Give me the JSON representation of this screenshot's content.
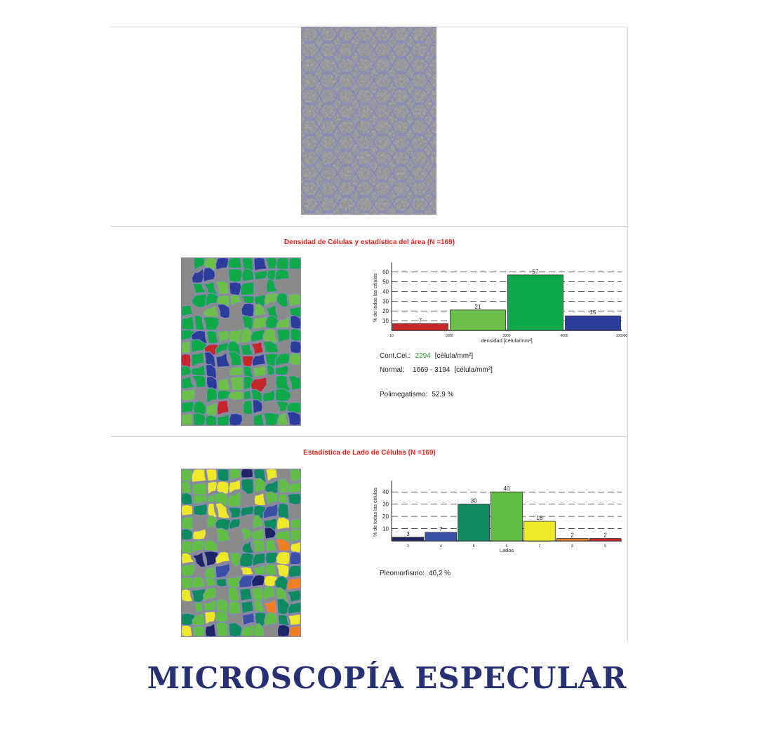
{
  "section1": {
    "title": "Densidad de Células y estadística del área (N =169)",
    "stats": {
      "cont_label": "Cont.Cel.:",
      "cont_value": "2294",
      "cont_unit": "[célula/mm²]",
      "normal_label": "Normal:",
      "normal_value": "1669 - 3194",
      "normal_unit": "[célula/mm²]",
      "poli_label": "Polimegatismo:",
      "poli_value": "52,9 %"
    }
  },
  "section2": {
    "title": "Estadística de Lado de Células (N =169)",
    "stats": {
      "pleo_label": "Pleomorfismo:",
      "pleo_value": "40,2 %"
    }
  },
  "big_title": "MICROSCOPÍA ESPECULAR",
  "chart_data": [
    {
      "type": "bar",
      "categories": [
        "10-1000",
        "1000-2000",
        "2000-4000",
        "4000-100000"
      ],
      "edge_ticks": [
        "10",
        "1000",
        "2000",
        "4000",
        "100000"
      ],
      "values": [
        7,
        21,
        57,
        15
      ],
      "colors": [
        "#c4262a",
        "#6cbf4a",
        "#10a94a",
        "#2b3c99"
      ],
      "xlabel": "densidad [célula/mm²]",
      "ylabel": "% de todas las células",
      "yticks": [
        10,
        20,
        30,
        40,
        50,
        60
      ],
      "ylim": [
        0,
        67
      ],
      "grid": true
    },
    {
      "type": "bar",
      "categories": [
        "3",
        "4",
        "5",
        "6",
        "7",
        "8",
        "9"
      ],
      "values": [
        3,
        7,
        30,
        40,
        16,
        2,
        2
      ],
      "colors": [
        "#1e2466",
        "#3b4fa6",
        "#0e8a5f",
        "#62bd45",
        "#ece92a",
        "#f07f24",
        "#d8232a"
      ],
      "xlabel": "Lados",
      "ylabel": "% de todas las células",
      "yticks": [
        10,
        20,
        30,
        40
      ],
      "ylim": [
        0,
        47
      ],
      "grid": true
    }
  ]
}
